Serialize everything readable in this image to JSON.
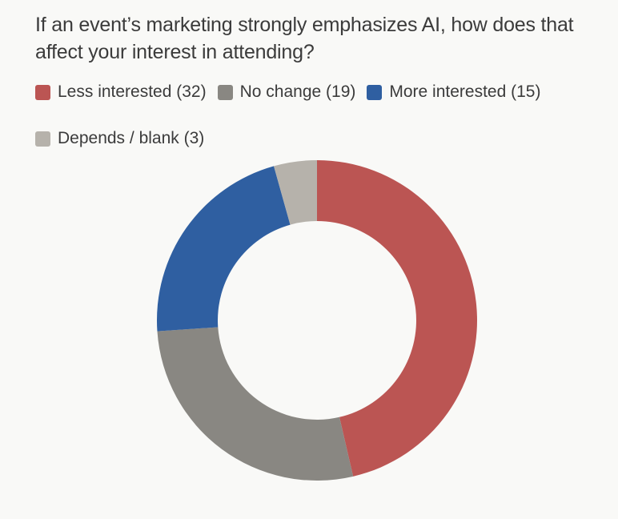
{
  "title": "If an event’s marketing strongly emphasizes AI, how does that affect your interest in attending?",
  "legend": [
    {
      "label": "Less interested (32)",
      "color": "#bb5553"
    },
    {
      "label": "No change (19)",
      "color": "#898782"
    },
    {
      "label": "More interested (15)",
      "color": "#2f5fa1"
    },
    {
      "label": "Depends / blank (3)",
      "color": "#b6b2ab"
    }
  ],
  "chart_data": {
    "type": "pie",
    "subtype": "donut",
    "title": "If an event’s marketing strongly emphasizes AI, how does that affect your interest in attending?",
    "categories": [
      "Less interested",
      "No change",
      "More interested",
      "Depends / blank"
    ],
    "values": [
      32,
      19,
      15,
      3
    ],
    "colors": [
      "#bb5553",
      "#898782",
      "#2f5fa1",
      "#b6b2ab"
    ],
    "legend_position": "top",
    "start_angle": "12 o'clock, clockwise",
    "center": [
      396,
      400
    ],
    "outer_radius": 200,
    "inner_radius": 124
  }
}
